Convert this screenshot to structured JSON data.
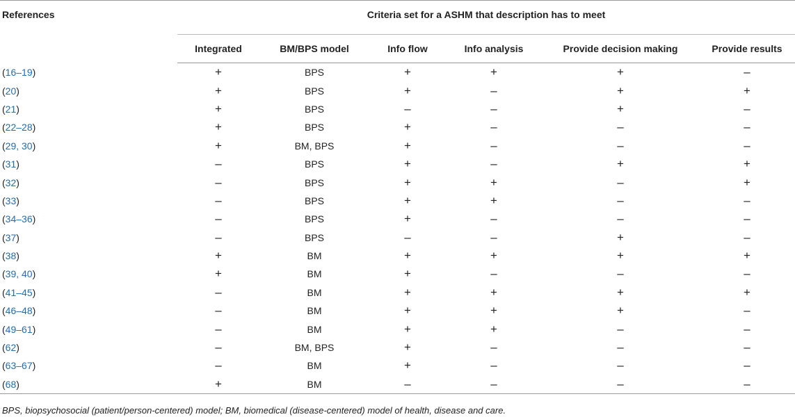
{
  "table": {
    "header_reference": "References",
    "header_group": "Criteria set for a ASHM that description has to meet",
    "columns": [
      "Integrated",
      "BM/BPS model",
      "Info flow",
      "Info analysis",
      "Provide decision making",
      "Provide results"
    ],
    "rows": [
      {
        "pre": "(",
        "nums": "16–19",
        "post": ")",
        "cells": [
          "+",
          "BPS",
          "+",
          "+",
          "+",
          "–"
        ]
      },
      {
        "pre": "(",
        "nums": "20",
        "post": ")",
        "cells": [
          "+",
          "BPS",
          "+",
          "–",
          "+",
          "+"
        ]
      },
      {
        "pre": "(",
        "nums": "21",
        "post": ")",
        "cells": [
          "+",
          "BPS",
          "–",
          "–",
          "+",
          "–"
        ]
      },
      {
        "pre": "(",
        "nums": "22–28",
        "post": ")",
        "cells": [
          "+",
          "BPS",
          "+",
          "–",
          "–",
          "–"
        ]
      },
      {
        "pre": "(",
        "nums": "29, 30",
        "post": ")",
        "cells": [
          "+",
          "BM, BPS",
          "+",
          "–",
          "–",
          "–"
        ]
      },
      {
        "pre": "(",
        "nums": "31",
        "post": ")",
        "cells": [
          "–",
          "BPS",
          "+",
          "–",
          "+",
          "+"
        ]
      },
      {
        "pre": "(",
        "nums": "32",
        "post": ")",
        "cells": [
          "–",
          "BPS",
          "+",
          "+",
          "–",
          "+"
        ]
      },
      {
        "pre": "(",
        "nums": "33",
        "post": ")",
        "cells": [
          "–",
          "BPS",
          "+",
          "+",
          "–",
          "–"
        ]
      },
      {
        "pre": "(",
        "nums": "34–36",
        "post": ")",
        "cells": [
          "–",
          "BPS",
          "+",
          "–",
          "–",
          "–"
        ]
      },
      {
        "pre": "(",
        "nums": "37",
        "post": ")",
        "cells": [
          "–",
          "BPS",
          "–",
          "–",
          "+",
          "–"
        ]
      },
      {
        "pre": "(",
        "nums": "38",
        "post": ")",
        "cells": [
          "+",
          "BM",
          "+",
          "+",
          "+",
          "+"
        ]
      },
      {
        "pre": "(",
        "nums": "39, 40",
        "post": ")",
        "cells": [
          "+",
          "BM",
          "+",
          "–",
          "–",
          "–"
        ]
      },
      {
        "pre": "(",
        "nums": "41–45",
        "post": ")",
        "cells": [
          "–",
          "BM",
          "+",
          "+",
          "+",
          "+"
        ]
      },
      {
        "pre": "(",
        "nums": "46–48",
        "post": ")",
        "cells": [
          "–",
          "BM",
          "+",
          "+",
          "+",
          "–"
        ]
      },
      {
        "pre": "(",
        "nums": "49–61",
        "post": ")",
        "cells": [
          "–",
          "BM",
          "+",
          "+",
          "–",
          "–"
        ]
      },
      {
        "pre": "(",
        "nums": "62",
        "post": ")",
        "cells": [
          "–",
          "BM, BPS",
          "+",
          "–",
          "–",
          "–"
        ]
      },
      {
        "pre": "(",
        "nums": "63–67",
        "post": ")",
        "cells": [
          "–",
          "BM",
          "+",
          "–",
          "–",
          "–"
        ]
      },
      {
        "pre": "(",
        "nums": "68",
        "post": ")",
        "cells": [
          "+",
          "BM",
          "–",
          "–",
          "–",
          "–"
        ]
      }
    ]
  },
  "footnote": "BPS, biopsychosocial (patient/person-centered) model; BM, biomedical (disease-centered) model of health, disease and care.",
  "colors": {
    "reference_link": "#1f6db3",
    "text": "#222222",
    "rule": "#999999"
  }
}
